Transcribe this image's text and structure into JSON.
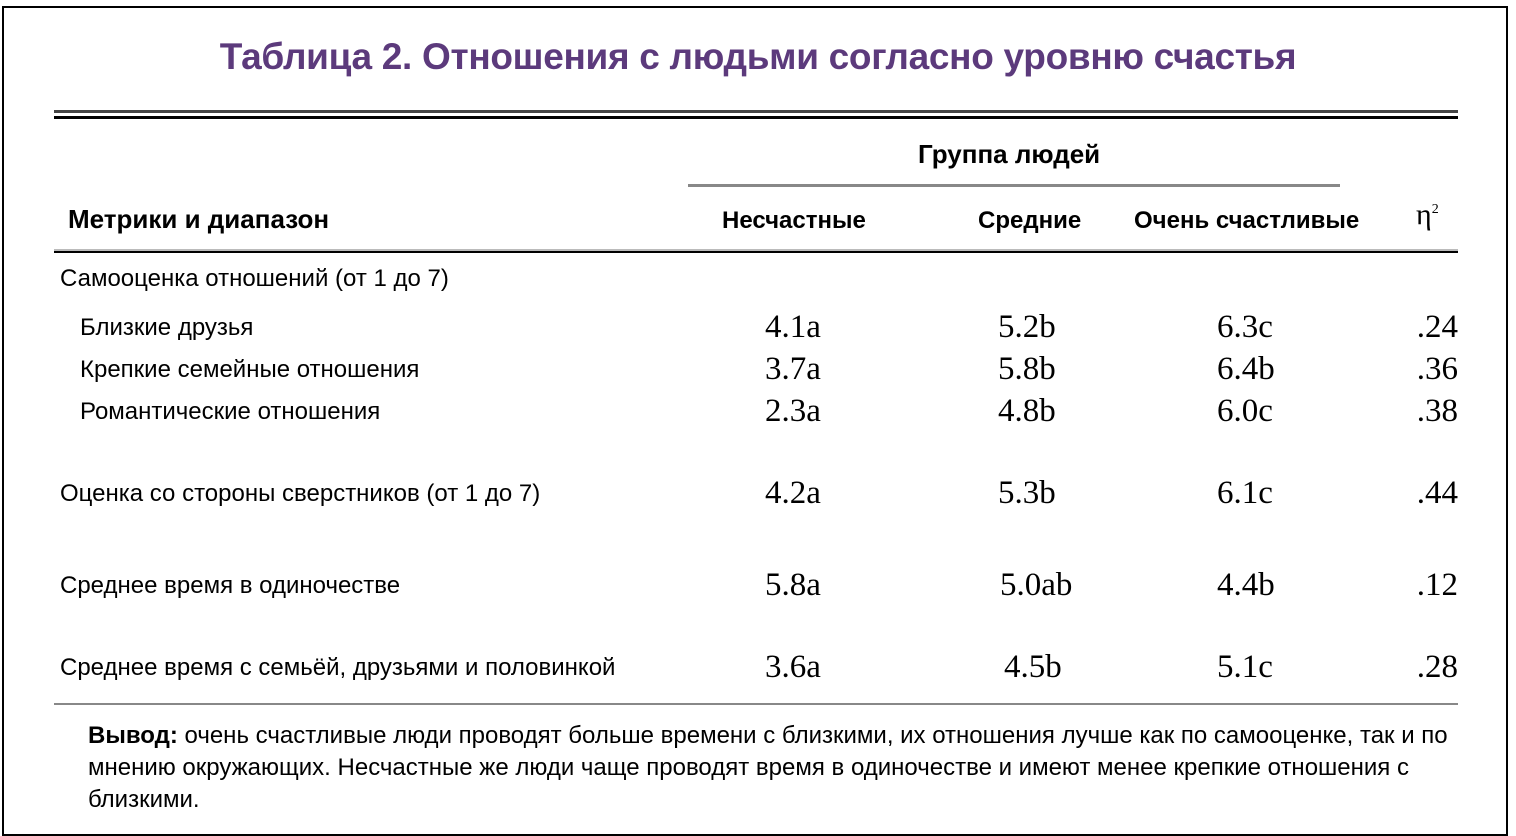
{
  "title": "Таблица 2. Отношения с людьми согласно уровню счастья",
  "colors": {
    "title": "#5c3a7c"
  },
  "header": {
    "row_label": "Метрики и диапазон",
    "group_label": "Группа людей",
    "columns": [
      "Несчастные",
      "Средние",
      "Очень счастливые"
    ],
    "effect": "η",
    "effect_sup": "2"
  },
  "section": "Самооценка отношений (от 1 до 7)",
  "rows": [
    {
      "label": "Близкие друзья",
      "values": [
        "4.1a",
        "5.2b",
        "6.3c"
      ],
      "eta": ".24"
    },
    {
      "label": "Крепкие семейные отношения",
      "values": [
        "3.7a",
        "5.8b",
        "6.4b"
      ],
      "eta": ".36"
    },
    {
      "label": "Романтические отношения",
      "values": [
        "2.3a",
        "4.8b",
        "6.0c"
      ],
      "eta": ".38"
    },
    {
      "label": "Оценка со стороны сверстников (от 1 до 7)",
      "values": [
        "4.2a",
        "5.3b",
        "6.1c"
      ],
      "eta": ".44"
    },
    {
      "label": "Среднее время в одиночестве",
      "values": [
        "5.8a",
        "5.0ab",
        "4.4b"
      ],
      "eta": ".12"
    },
    {
      "label": "Среднее время с семьёй, друзьями и половинкой",
      "values": [
        "3.6a",
        "4.5b",
        "5.1c"
      ],
      "eta": ".28"
    }
  ],
  "footer": {
    "bold": "Вывод:",
    "text": " очень счастливые люди проводят больше времени с близкими, их отношения лучше как по самооценке, так и по мнению окружающих. Несчастные же люди чаще проводят время в одиночестве и имеют менее крепкие отношения с близкими."
  }
}
